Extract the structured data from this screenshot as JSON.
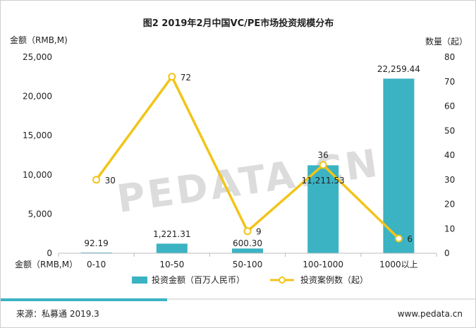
{
  "chart_data": {
    "type": "bar+line",
    "title": "图2 2019年2月中国VC/PE市场投资规模分布",
    "categories": [
      "0-10",
      "10-50",
      "50-100",
      "100-1000",
      "1000以上"
    ],
    "x_axis_label": "金额（RMB,M）",
    "y_left": {
      "label": "金额（RMB,M)",
      "range": [
        0,
        25000
      ],
      "ticks": [
        "0",
        "5,000",
        "10,000",
        "15,000",
        "20,000",
        "25,000"
      ],
      "tick_values": [
        0,
        5000,
        10000,
        15000,
        20000,
        25000
      ]
    },
    "y_right": {
      "label": "数量（起）",
      "range": [
        0,
        80
      ],
      "ticks": [
        "0",
        "10",
        "20",
        "30",
        "40",
        "50",
        "60",
        "70",
        "80"
      ],
      "tick_values": [
        0,
        10,
        20,
        30,
        40,
        50,
        60,
        70,
        80
      ]
    },
    "series": [
      {
        "name": "投资金额（百万人民币）",
        "kind": "bar",
        "axis": "left",
        "color": "#3BB3C3",
        "values": [
          92.19,
          1221.31,
          600.3,
          11211.53,
          22259.44
        ],
        "labels": [
          "92.19",
          "1,221.31",
          "600.30",
          "11,211.53",
          "22,259.44"
        ]
      },
      {
        "name": "投资案例数（起）",
        "kind": "line",
        "axis": "right",
        "color": "#F2C418",
        "values": [
          30,
          72,
          9,
          36,
          6
        ],
        "labels": [
          "30",
          "72",
          "9",
          "36",
          "6"
        ]
      }
    ],
    "legend_position": "bottom-center",
    "watermark": "PEDATA.CN"
  },
  "footer": {
    "source": "来源：私募通 2019.3",
    "website": "www.pedata.cn",
    "accent_color": "#3BB3C3"
  }
}
